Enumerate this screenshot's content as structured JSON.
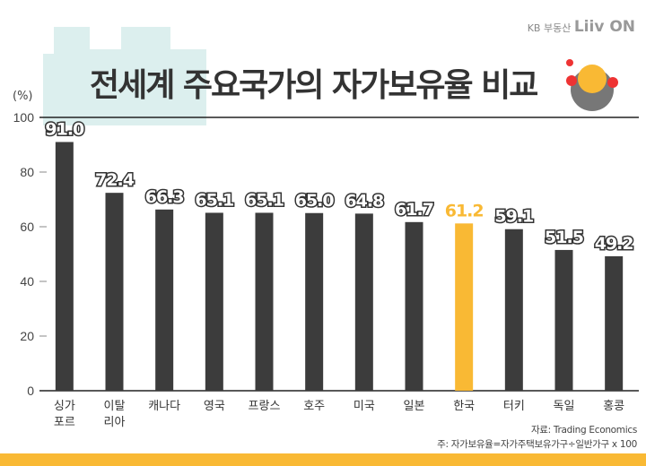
{
  "header": {
    "title": "전세계 주요국가의 자가보유율 비교",
    "brand_small": "KB 부동산",
    "brand_big": "Liiv ON",
    "unit": "(%)"
  },
  "footer": {
    "source": "자료: Trading Economics",
    "note": "주: 자가보유율=자가주택보유가구÷일반가구 x 100"
  },
  "colors": {
    "bar": "#3c3c3c",
    "highlight": "#f9b934"
  },
  "chart_data": {
    "type": "bar",
    "title": "전세계 주요국가의 자가보유율 비교",
    "ylabel": "(%)",
    "xlabel": "",
    "ylim": [
      0,
      100
    ],
    "yticks": [
      0,
      20,
      40,
      60,
      80,
      100
    ],
    "categories": [
      "싱가\n포르",
      "이탈\n리아",
      "캐나다",
      "영국",
      "프랑스",
      "호주",
      "미국",
      "일본",
      "한국",
      "터키",
      "독일",
      "홍콩"
    ],
    "values": [
      91.0,
      72.4,
      66.3,
      65.1,
      65.1,
      65.0,
      64.8,
      61.7,
      61.2,
      59.1,
      51.5,
      49.2
    ],
    "labels": [
      "91.0",
      "72.4",
      "66.3",
      "65.1",
      "65.1",
      "65.0",
      "64.8",
      "61.7",
      "61.2",
      "59.1",
      "51.5",
      "49.2"
    ],
    "highlight_index": 8
  }
}
